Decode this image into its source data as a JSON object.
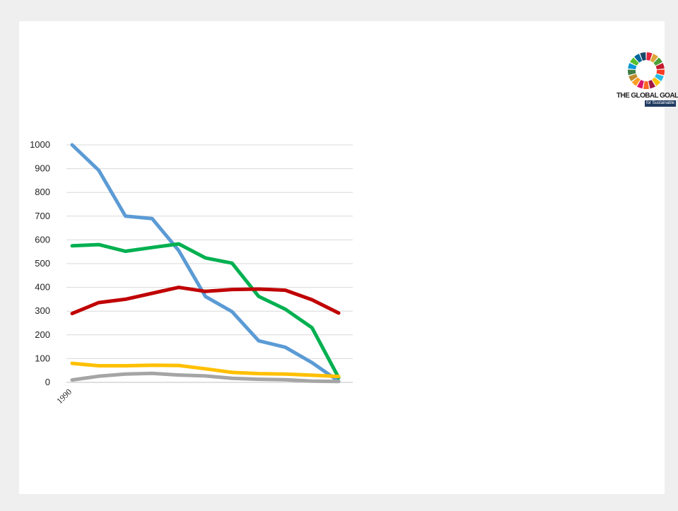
{
  "logo": {
    "title": "THE GLOBAL GOALS",
    "subtitle": "for Sustainable Development",
    "wheel_colors": [
      "#e5243b",
      "#dda63a",
      "#4c9f38",
      "#c5192d",
      "#ff3a21",
      "#26bde2",
      "#fcc30b",
      "#a21942",
      "#fd6925",
      "#dd1367",
      "#fd9d24",
      "#bf8b2e",
      "#3f7e44",
      "#0a97d9",
      "#56c02b",
      "#00689d",
      "#19486a"
    ]
  },
  "chart_data": {
    "type": "line",
    "title": "",
    "xlabel": "",
    "ylabel": "",
    "ylim": [
      0,
      1000
    ],
    "yticks": [
      0,
      100,
      200,
      300,
      400,
      500,
      600,
      700,
      800,
      900,
      1000
    ],
    "x": [
      1990,
      1991,
      1992,
      1993,
      1994,
      1995,
      1996,
      1997,
      1998,
      1999,
      2000
    ],
    "xtick_labels": [
      "1990",
      "",
      "",
      "",
      "",
      "",
      "",
      "",
      "",
      "",
      ""
    ],
    "grid": true,
    "series": [
      {
        "color": "#5b9bd5",
        "values": [
          1000,
          893,
          700,
          690,
          555,
          362,
          298,
          175,
          148,
          83,
          5
        ]
      },
      {
        "color": "#00b050",
        "values": [
          575,
          580,
          552,
          568,
          583,
          524,
          502,
          362,
          308,
          230,
          20
        ]
      },
      {
        "color": "#c00000",
        "values": [
          290,
          336,
          350,
          375,
          400,
          383,
          391,
          393,
          388,
          348,
          292
        ]
      },
      {
        "color": "#ffc000",
        "values": [
          80,
          70,
          70,
          72,
          71,
          57,
          42,
          37,
          35,
          30,
          25
        ]
      },
      {
        "color": "#a5a5a5",
        "values": [
          10,
          26,
          35,
          38,
          31,
          27,
          17,
          13,
          11,
          5,
          4
        ]
      }
    ]
  }
}
